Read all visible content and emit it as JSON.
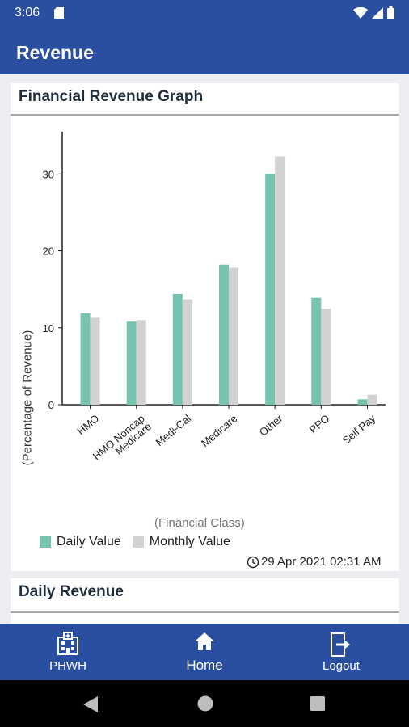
{
  "status_bar": {
    "time": "3:06"
  },
  "app_bar": {
    "title": "Revenue"
  },
  "graph_card": {
    "title": "Financial Revenue Graph",
    "timestamp": "29 Apr 2021 02:31 AM"
  },
  "daily_card": {
    "title": "Daily Revenue"
  },
  "bottom_nav": {
    "items": [
      {
        "label": "PHWH",
        "icon": "hospital-icon"
      },
      {
        "label": "Home",
        "icon": "home-icon"
      },
      {
        "label": "Logout",
        "icon": "logout-icon"
      }
    ]
  },
  "colors": {
    "brand": "#2a4ea0",
    "daily": "#76c4b0",
    "monthly": "#d2d2d2"
  },
  "chart_data": {
    "type": "bar",
    "categories": [
      "HMO",
      "HMO Noncap Medicare",
      "Medi-Cal",
      "Medicare",
      "Other",
      "PPO",
      "Self Pay"
    ],
    "series": [
      {
        "name": "Daily Value",
        "values": [
          11.9,
          10.8,
          14.4,
          18.2,
          30.0,
          13.9,
          0.7
        ]
      },
      {
        "name": "Monthly Value",
        "values": [
          11.3,
          11.0,
          13.7,
          17.8,
          32.3,
          12.5,
          1.3
        ]
      }
    ],
    "xlabel": "(Financial Class)",
    "ylabel": "(Percentage of Revenue)",
    "yticks": [
      0,
      10,
      20,
      30
    ],
    "ylim": [
      0,
      35.5
    ],
    "legend_position": "bottom-left",
    "grid": false
  }
}
